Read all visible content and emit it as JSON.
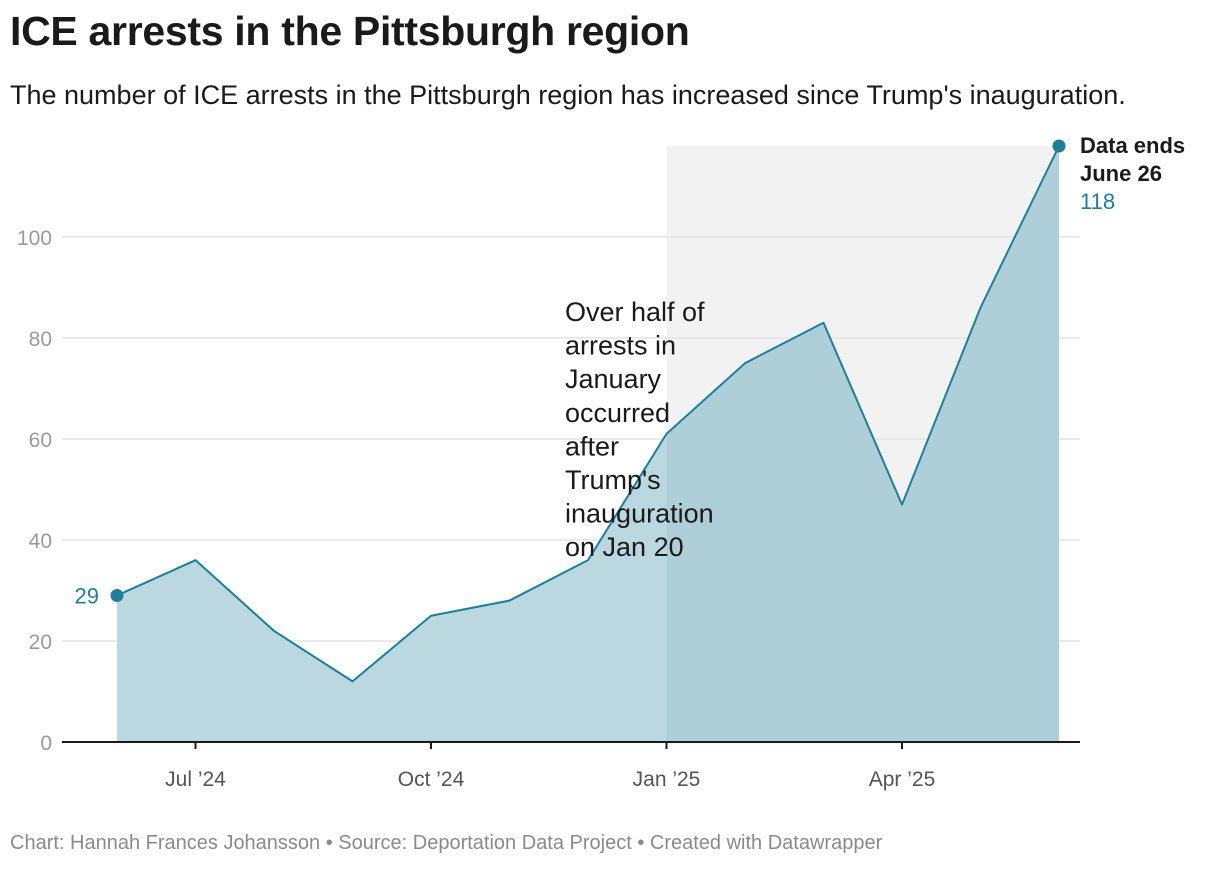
{
  "title": "ICE arrests in the Pittsburgh region",
  "subtitle": "The number of ICE arrests in the Pittsburgh region has increased since Trump's inauguration.",
  "footer": "Chart: Hannah Frances Johansson • Source: Deportation Data Project • Created with Datawrapper",
  "annotation": {
    "text_lines": [
      "Over half of",
      "arrests in",
      "January",
      "occurred",
      "after",
      "Trump's",
      "inauguration",
      "on Jan 20"
    ]
  },
  "end_label": {
    "line1": "Data ends",
    "line2": "June 26",
    "value": "118"
  },
  "start_label": {
    "value": "29"
  },
  "colors": {
    "line": "#1f7f9b",
    "area": "#b7d6df",
    "highlight_band": "#f2f2f2",
    "grid": "#e3e3e3",
    "axis_text": "#9a9a9a",
    "axis_line": "#1a1a1a"
  },
  "chart_data": {
    "type": "area",
    "title": "ICE arrests in the Pittsburgh region",
    "subtitle": "The number of ICE arrests in the Pittsburgh region has increased since Trump's inauguration.",
    "xlabel": "",
    "ylabel": "",
    "x": [
      "2024-06",
      "2024-07",
      "2024-08",
      "2024-09",
      "2024-10",
      "2024-11",
      "2024-12",
      "2025-01",
      "2025-02",
      "2025-03",
      "2025-04",
      "2025-05",
      "2025-06"
    ],
    "values": [
      29,
      36,
      22,
      12,
      25,
      28,
      36,
      61,
      75,
      83,
      47,
      86,
      118
    ],
    "ylim": [
      0,
      118
    ],
    "yticks": [
      0,
      20,
      40,
      60,
      80,
      100
    ],
    "xticks": [
      {
        "label": "Jul ’24",
        "date": "2024-07"
      },
      {
        "label": "Oct ’24",
        "date": "2024-10"
      },
      {
        "label": "Jan ’25",
        "date": "2025-01"
      },
      {
        "label": "Apr ’25",
        "date": "2025-04"
      }
    ],
    "highlight_range": [
      "2025-01",
      "2025-06"
    ],
    "grid": true
  }
}
